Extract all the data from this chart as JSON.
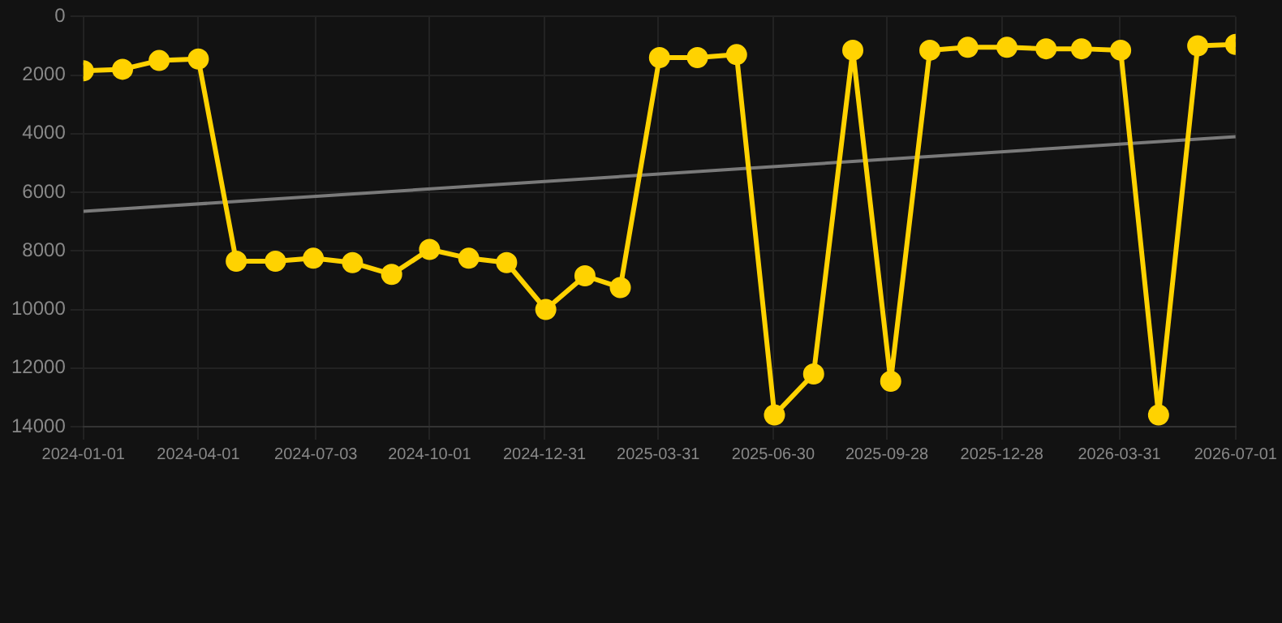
{
  "chart_data": {
    "type": "line",
    "x": [
      "2024-01-01",
      "2024-02-01",
      "2024-03-01",
      "2024-04-01",
      "2024-05-01",
      "2024-06-01",
      "2024-07-01",
      "2024-08-01",
      "2024-09-01",
      "2024-10-01",
      "2024-11-01",
      "2024-12-01",
      "2025-01-01",
      "2025-02-01",
      "2025-03-01",
      "2025-04-01",
      "2025-05-01",
      "2025-06-01",
      "2025-07-01",
      "2025-08-01",
      "2025-09-01",
      "2025-10-01",
      "2025-11-01",
      "2025-12-01",
      "2026-01-01",
      "2026-02-01",
      "2026-03-01",
      "2026-04-01",
      "2026-05-01",
      "2026-06-01",
      "2026-07-01"
    ],
    "series": [
      {
        "color": "#ffd200",
        "marker": "circle",
        "values": [
          1850,
          1800,
          1500,
          1450,
          8350,
          8350,
          8250,
          8400,
          8800,
          7950,
          8250,
          8400,
          10000,
          8850,
          9250,
          1400,
          1400,
          1300,
          13600,
          12200,
          1150,
          12450,
          1150,
          1050,
          1050,
          1100,
          1100,
          1150,
          13600,
          1000,
          950
        ]
      },
      {
        "type": "line",
        "color": "#7a7a7a",
        "marker": "none",
        "x": [
          "2024-01-01",
          "2026-07-01"
        ],
        "values": [
          6650,
          4100
        ]
      }
    ],
    "ylim": [
      14000,
      0
    ],
    "yticks": [
      0,
      2000,
      4000,
      6000,
      8000,
      10000,
      12000,
      14000
    ],
    "xlim": [
      "2024-01-01",
      "2026-07-01"
    ],
    "xticks": [
      "2024-01-01",
      "2024-04-01",
      "2024-07-03",
      "2024-10-01",
      "2024-12-31",
      "2025-03-31",
      "2025-06-30",
      "2025-09-28",
      "2025-12-28",
      "2026-03-31",
      "2026-07-01"
    ],
    "grid": true,
    "legend": false
  }
}
